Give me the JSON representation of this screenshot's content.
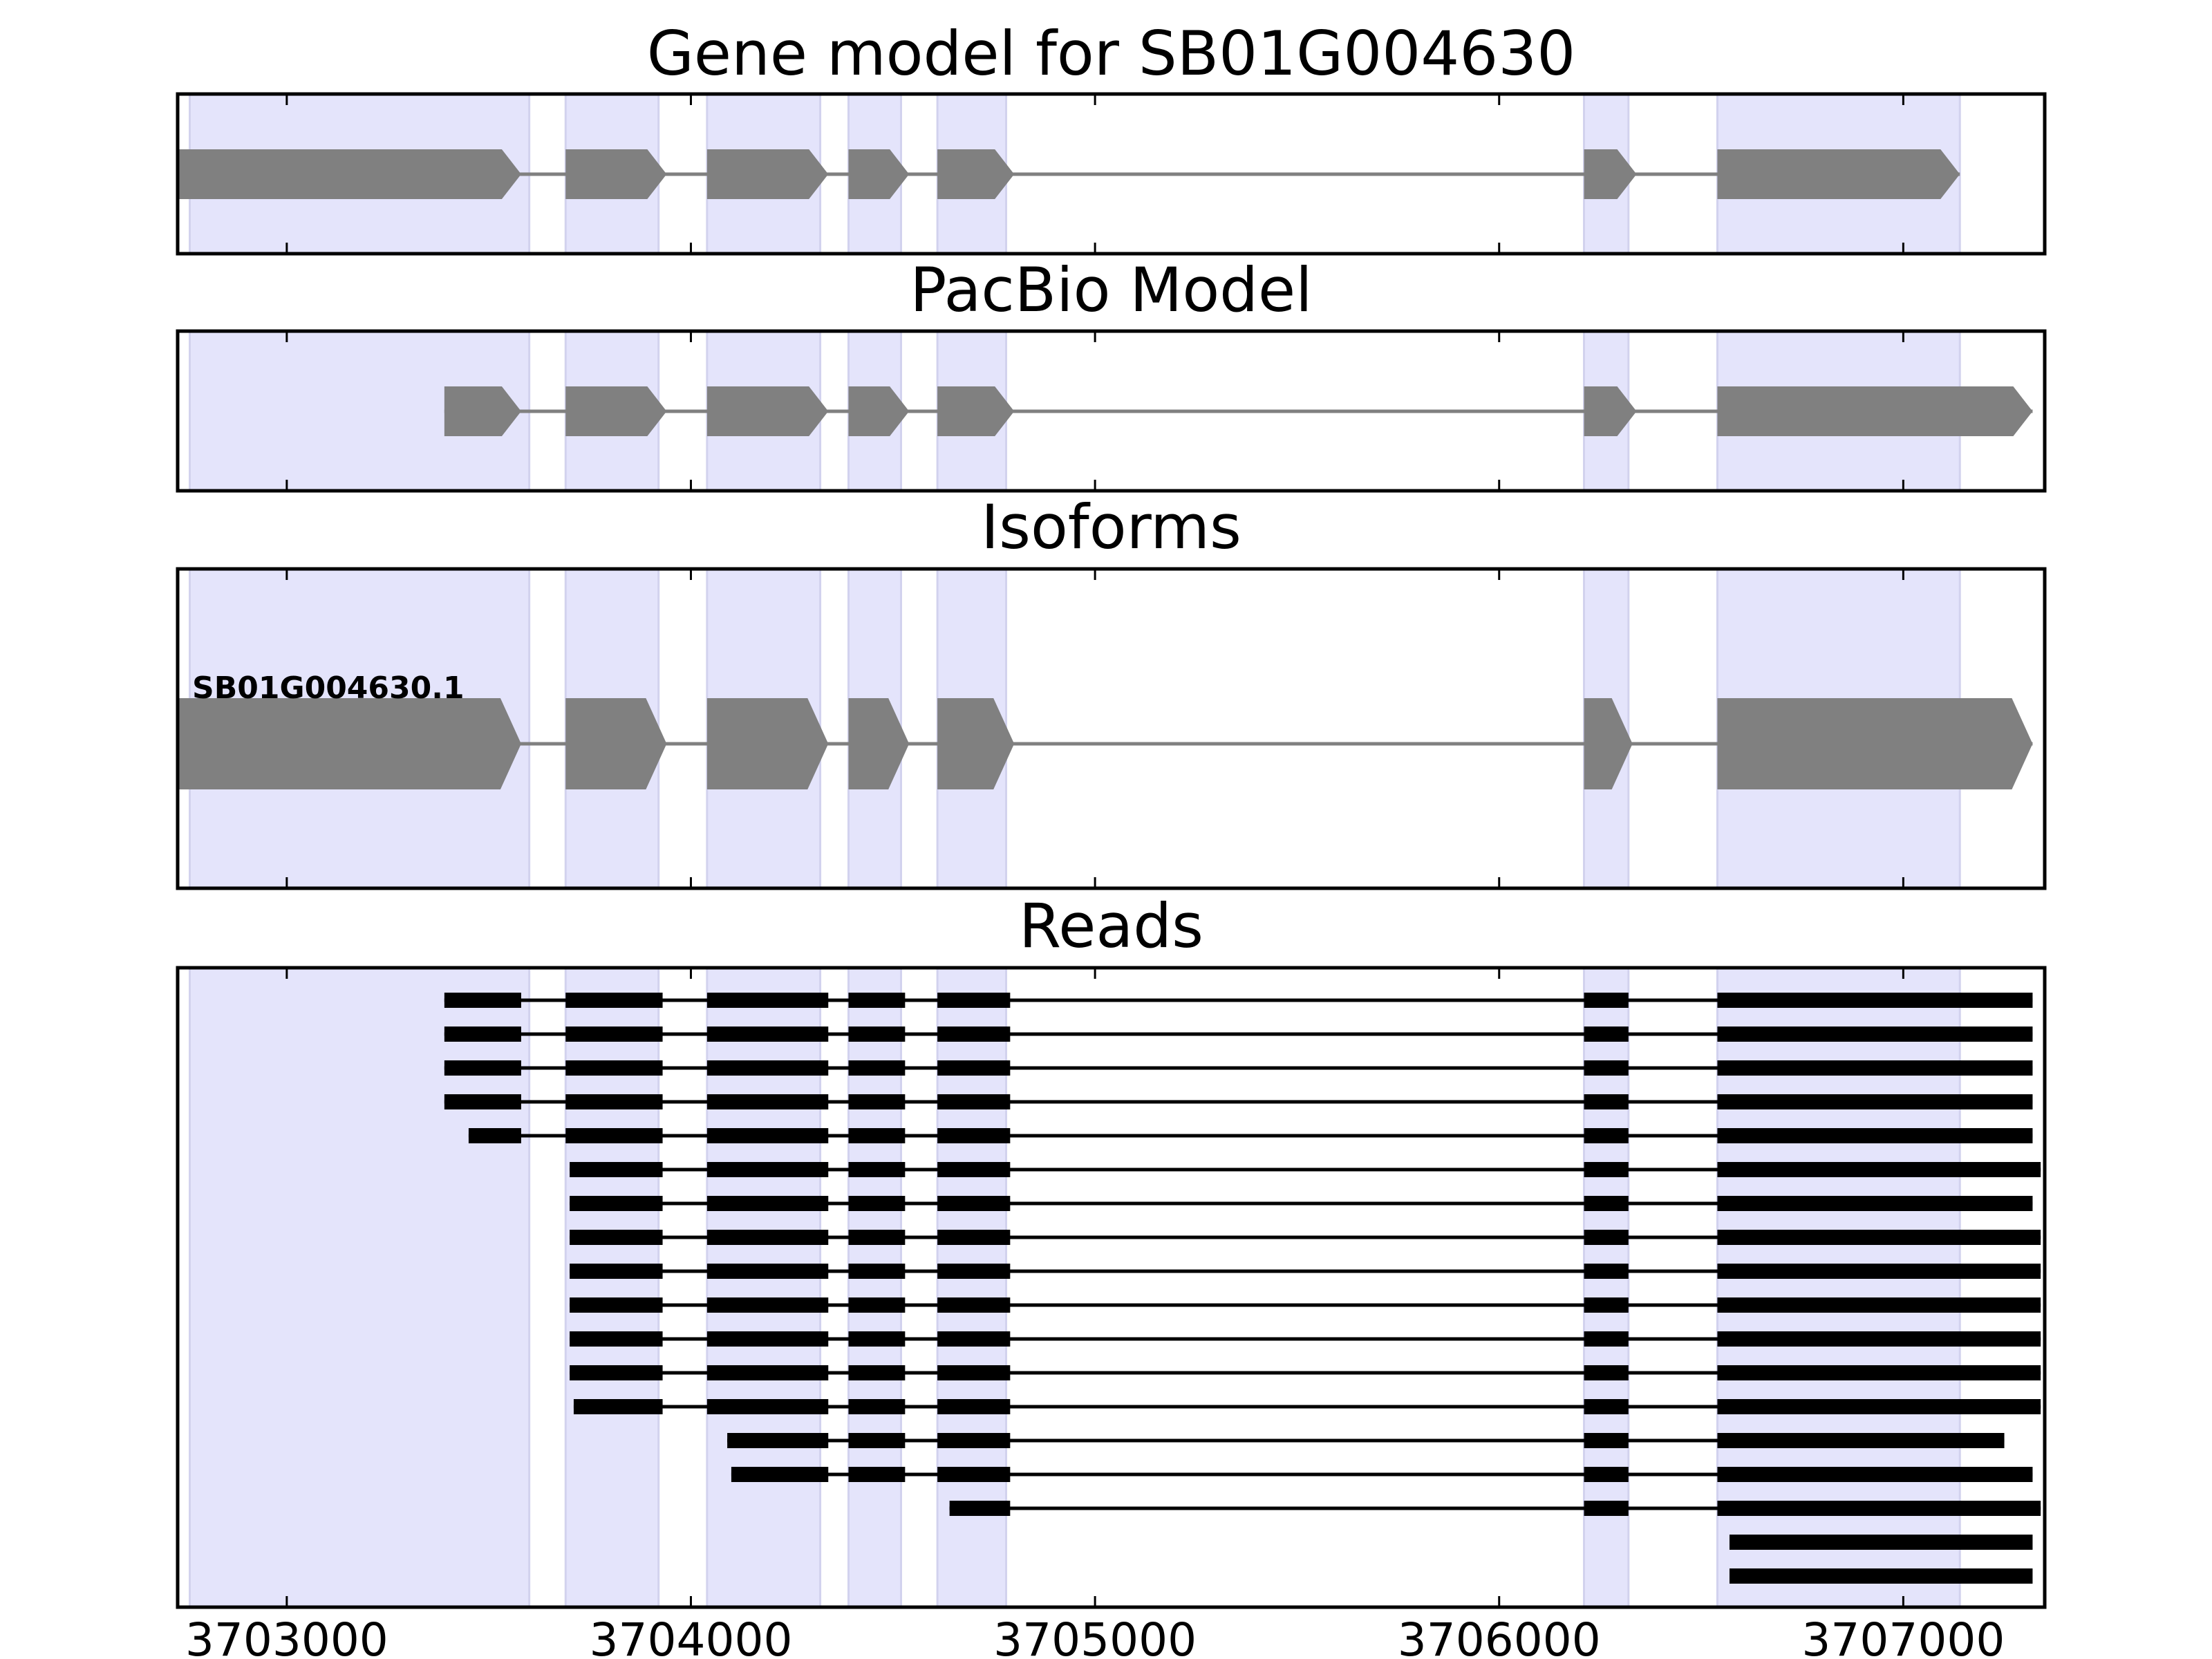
{
  "chart_data": {
    "type": "gene_track",
    "xlim": [
      3702730,
      3707350
    ],
    "x_ticks": [
      3703000,
      3704000,
      3705000,
      3706000,
      3707000
    ],
    "x_tick_labels": [
      "3703000",
      "3704000",
      "3705000",
      "3706000",
      "3707000"
    ],
    "exon_highlight_regions": [
      [
        3702760,
        3703600
      ],
      [
        3703690,
        3703920
      ],
      [
        3704040,
        3704320
      ],
      [
        3704390,
        3704520
      ],
      [
        3704610,
        3704780
      ],
      [
        3706210,
        3706320
      ],
      [
        3706540,
        3707140
      ]
    ],
    "panels": [
      {
        "title": "Gene model for SB01G004630",
        "strand": "+",
        "exons": [
          [
            3702730,
            3703580
          ],
          [
            3703690,
            3703940
          ],
          [
            3704040,
            3704340
          ],
          [
            3704390,
            3704540
          ],
          [
            3704610,
            3704800
          ],
          [
            3706210,
            3706340
          ],
          [
            3706540,
            3707140
          ]
        ]
      },
      {
        "title": "PacBio Model",
        "strand": "+",
        "exons": [
          [
            3703390,
            3703580
          ],
          [
            3703690,
            3703940
          ],
          [
            3704040,
            3704340
          ],
          [
            3704390,
            3704540
          ],
          [
            3704610,
            3704800
          ],
          [
            3706210,
            3706340
          ],
          [
            3706540,
            3707320
          ]
        ]
      },
      {
        "title": "Isoforms",
        "strand": "+",
        "isoforms": [
          {
            "label": "SB01G004630.1",
            "exons": [
              [
                3702730,
                3703580
              ],
              [
                3703690,
                3703940
              ],
              [
                3704040,
                3704340
              ],
              [
                3704390,
                3704540
              ],
              [
                3704610,
                3704800
              ],
              [
                3706210,
                3706330
              ],
              [
                3706540,
                3707320
              ]
            ]
          }
        ]
      },
      {
        "title": "Reads",
        "reads": [
          [
            [
              3703390,
              3703580
            ],
            [
              3703690,
              3703930
            ],
            [
              3704040,
              3704340
            ],
            [
              3704390,
              3704530
            ],
            [
              3704610,
              3704790
            ],
            [
              3706210,
              3706320
            ],
            [
              3706540,
              3707320
            ]
          ],
          [
            [
              3703390,
              3703580
            ],
            [
              3703690,
              3703930
            ],
            [
              3704040,
              3704340
            ],
            [
              3704390,
              3704530
            ],
            [
              3704610,
              3704790
            ],
            [
              3706210,
              3706320
            ],
            [
              3706540,
              3707320
            ]
          ],
          [
            [
              3703390,
              3703580
            ],
            [
              3703690,
              3703930
            ],
            [
              3704040,
              3704340
            ],
            [
              3704390,
              3704530
            ],
            [
              3704610,
              3704790
            ],
            [
              3706210,
              3706320
            ],
            [
              3706540,
              3707320
            ]
          ],
          [
            [
              3703390,
              3703580
            ],
            [
              3703690,
              3703930
            ],
            [
              3704040,
              3704340
            ],
            [
              3704390,
              3704530
            ],
            [
              3704610,
              3704790
            ],
            [
              3706210,
              3706320
            ],
            [
              3706540,
              3707320
            ]
          ],
          [
            [
              3703450,
              3703580
            ],
            [
              3703690,
              3703930
            ],
            [
              3704040,
              3704340
            ],
            [
              3704390,
              3704530
            ],
            [
              3704610,
              3704790
            ],
            [
              3706210,
              3706320
            ],
            [
              3706540,
              3707320
            ]
          ],
          [
            [
              3703700,
              3703930
            ],
            [
              3704040,
              3704340
            ],
            [
              3704390,
              3704530
            ],
            [
              3704610,
              3704790
            ],
            [
              3706210,
              3706320
            ],
            [
              3706540,
              3707340
            ]
          ],
          [
            [
              3703700,
              3703930
            ],
            [
              3704040,
              3704340
            ],
            [
              3704390,
              3704530
            ],
            [
              3704610,
              3704790
            ],
            [
              3706210,
              3706320
            ],
            [
              3706540,
              3707320
            ]
          ],
          [
            [
              3703700,
              3703930
            ],
            [
              3704040,
              3704340
            ],
            [
              3704390,
              3704530
            ],
            [
              3704610,
              3704790
            ],
            [
              3706210,
              3706320
            ],
            [
              3706540,
              3707340
            ]
          ],
          [
            [
              3703700,
              3703930
            ],
            [
              3704040,
              3704340
            ],
            [
              3704390,
              3704530
            ],
            [
              3704610,
              3704790
            ],
            [
              3706210,
              3706320
            ],
            [
              3706540,
              3707340
            ]
          ],
          [
            [
              3703700,
              3703930
            ],
            [
              3704040,
              3704340
            ],
            [
              3704390,
              3704530
            ],
            [
              3704610,
              3704790
            ],
            [
              3706210,
              3706320
            ],
            [
              3706540,
              3707340
            ]
          ],
          [
            [
              3703700,
              3703930
            ],
            [
              3704040,
              3704340
            ],
            [
              3704390,
              3704530
            ],
            [
              3704610,
              3704790
            ],
            [
              3706210,
              3706320
            ],
            [
              3706540,
              3707340
            ]
          ],
          [
            [
              3703700,
              3703930
            ],
            [
              3704040,
              3704340
            ],
            [
              3704390,
              3704530
            ],
            [
              3704610,
              3704790
            ],
            [
              3706210,
              3706320
            ],
            [
              3706540,
              3707340
            ]
          ],
          [
            [
              3703710,
              3703930
            ],
            [
              3704040,
              3704340
            ],
            [
              3704390,
              3704530
            ],
            [
              3704610,
              3704790
            ],
            [
              3706210,
              3706320
            ],
            [
              3706540,
              3707340
            ]
          ],
          [
            [
              3704090,
              3704340
            ],
            [
              3704390,
              3704530
            ],
            [
              3704610,
              3704790
            ],
            [
              3706210,
              3706320
            ],
            [
              3706540,
              3707250
            ]
          ],
          [
            [
              3704100,
              3704340
            ],
            [
              3704390,
              3704530
            ],
            [
              3704610,
              3704790
            ],
            [
              3706210,
              3706320
            ],
            [
              3706540,
              3707320
            ]
          ],
          [
            [
              3704640,
              3704790
            ],
            [
              3706210,
              3706320
            ],
            [
              3706540,
              3707340
            ]
          ],
          [
            [
              3706570,
              3707320
            ]
          ],
          [
            [
              3706570,
              3707320
            ]
          ]
        ]
      }
    ],
    "colors": {
      "highlight": "#e4e4fb",
      "highlight_edge": "#d2d2ee",
      "gene_feature": "#808080",
      "intron": "#808080",
      "read": "#000000",
      "frame": "#000000"
    }
  }
}
